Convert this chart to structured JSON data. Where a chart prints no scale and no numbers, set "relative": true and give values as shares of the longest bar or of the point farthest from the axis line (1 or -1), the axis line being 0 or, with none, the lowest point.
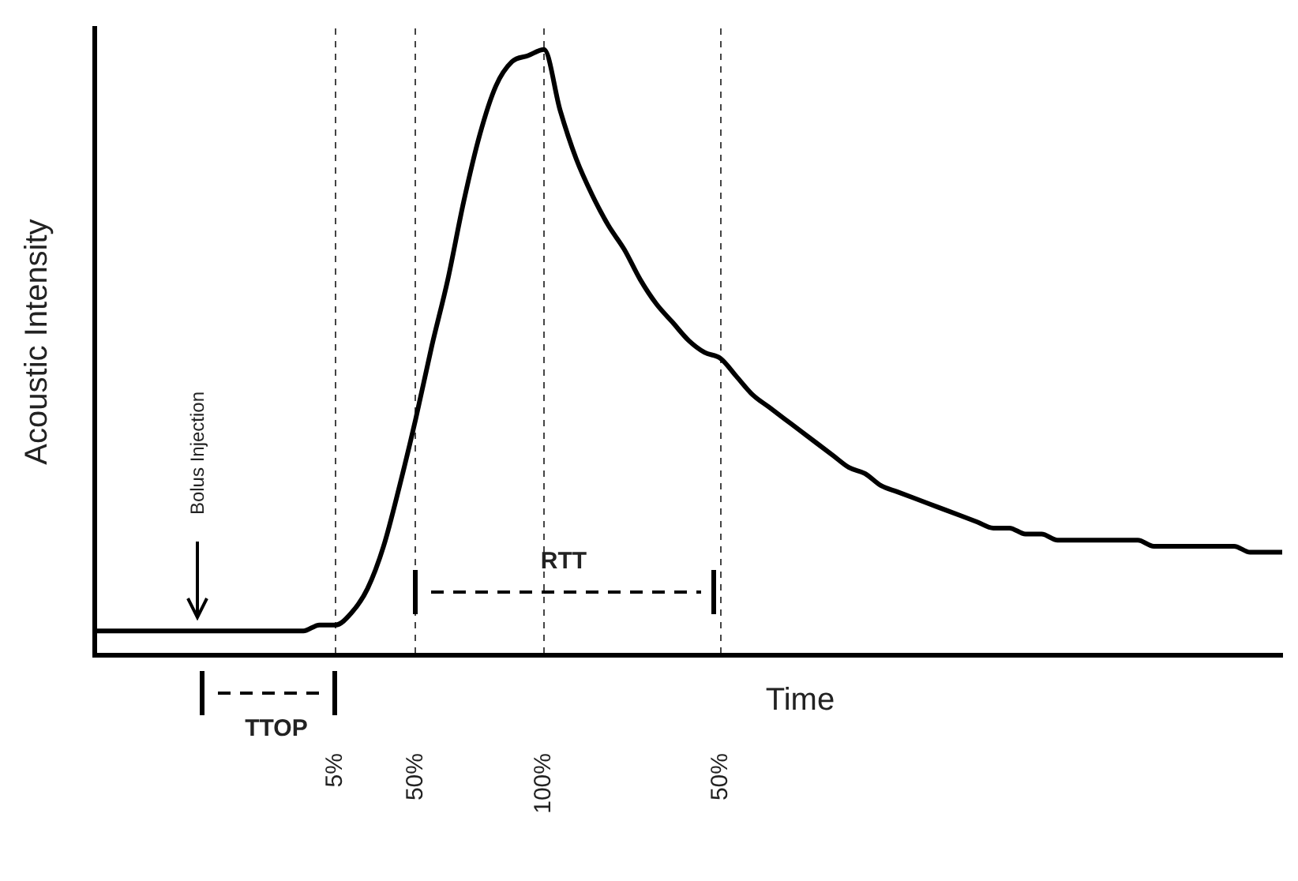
{
  "chart_data": {
    "type": "line",
    "relative": true,
    "xlabel": "Time",
    "ylabel": "Acoustic Intensity",
    "categories": [
      null,
      null,
      null,
      null,
      null,
      null,
      null,
      null,
      null,
      null,
      null,
      null,
      null,
      null,
      null,
      "5%",
      null,
      null,
      null,
      null,
      "50%",
      null,
      null,
      null,
      null,
      null,
      null,
      null,
      "100%",
      null,
      null,
      null,
      null,
      null,
      null,
      null,
      null,
      null,
      null,
      "50%",
      null,
      null,
      null,
      null,
      null,
      null,
      null,
      null,
      null,
      null,
      null,
      null,
      null,
      null,
      null,
      null,
      null,
      null,
      null,
      null,
      null,
      null,
      null,
      null,
      null,
      null,
      null,
      null,
      null,
      null,
      null,
      null,
      null,
      null,
      null
    ],
    "grid": "x",
    "marker": "none",
    "line_style": "solid",
    "annotations": [
      "Bolus Injection",
      "TTOP",
      "RTT"
    ],
    "series": [
      {
        "color": "#000000",
        "values": [
          0.04,
          0.04,
          0.04,
          0.04,
          0.04,
          0.04,
          0.04,
          0.04,
          0.04,
          0.04,
          0.04,
          0.04,
          0.04,
          0.04,
          0.05,
          0.05,
          0.07,
          0.11,
          0.18,
          0.28,
          0.39,
          0.51,
          0.62,
          0.75,
          0.86,
          0.94,
          0.98,
          0.99,
          1.0,
          0.9,
          0.82,
          0.76,
          0.71,
          0.67,
          0.62,
          0.58,
          0.55,
          0.52,
          0.5,
          0.49,
          0.46,
          0.43,
          0.41,
          0.39,
          0.37,
          0.35,
          0.33,
          0.31,
          0.3,
          0.28,
          0.27,
          0.26,
          0.25,
          0.24,
          0.23,
          0.22,
          0.21,
          0.21,
          0.2,
          0.2,
          0.19,
          0.19,
          0.19,
          0.19,
          0.19,
          0.19,
          0.18,
          0.18,
          0.18,
          0.18,
          0.18,
          0.18,
          0.17,
          0.17,
          0.17
        ]
      }
    ]
  }
}
